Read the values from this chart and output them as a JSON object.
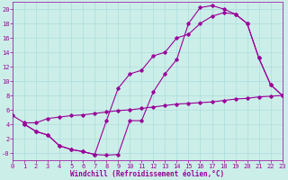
{
  "xlabel": "Windchill (Refroidissement éolien,°C)",
  "bg_color": "#cceee8",
  "line_color": "#990099",
  "grid_color": "#aadddd",
  "line1_x": [
    1,
    2,
    3,
    4,
    5,
    6,
    7,
    8,
    9,
    10,
    11,
    12,
    13,
    14,
    15,
    16,
    17,
    18,
    19,
    20,
    21,
    22,
    23
  ],
  "line1_y": [
    4,
    3,
    2.5,
    1,
    0.5,
    0.2,
    -0.2,
    -0.3,
    -0.2,
    4.5,
    4.5,
    8.5,
    11,
    13,
    18,
    20.2,
    20.5,
    20,
    19.3,
    18,
    13.2,
    9.5,
    8
  ],
  "line2_x": [
    0,
    1,
    2,
    3,
    4,
    5,
    6,
    7,
    8,
    9,
    10,
    11,
    12,
    13,
    14,
    15,
    16,
    17,
    18,
    19,
    20,
    21,
    22,
    23
  ],
  "line2_y": [
    5.2,
    4.2,
    4.2,
    4.8,
    5.0,
    5.2,
    5.3,
    5.5,
    5.7,
    5.9,
    6.0,
    6.2,
    6.4,
    6.6,
    6.8,
    6.9,
    7.0,
    7.1,
    7.3,
    7.5,
    7.6,
    7.8,
    7.9,
    8.0
  ],
  "line3_x": [
    1,
    2,
    3,
    4,
    5,
    6,
    7,
    8,
    9,
    10,
    11,
    12,
    13,
    14,
    15,
    16,
    17,
    18,
    19,
    20,
    21,
    22,
    23
  ],
  "line3_y": [
    4,
    3,
    2.5,
    1,
    0.5,
    0.2,
    -0.2,
    4.5,
    9,
    11,
    11.5,
    13.5,
    14,
    16,
    16.5,
    18,
    19,
    19.5,
    19.3,
    18,
    13.2,
    9.5,
    8
  ],
  "ylim": [
    -1,
    21
  ],
  "xlim": [
    0,
    23
  ],
  "yticks": [
    0,
    2,
    4,
    6,
    8,
    10,
    12,
    14,
    16,
    18,
    20
  ],
  "ytick_labels": [
    "-0",
    "2",
    "4",
    "6",
    "8",
    "10",
    "12",
    "14",
    "16",
    "18",
    "20"
  ],
  "xticks": [
    0,
    1,
    2,
    3,
    4,
    5,
    6,
    7,
    8,
    9,
    10,
    11,
    12,
    13,
    14,
    15,
    16,
    17,
    18,
    19,
    20,
    21,
    22,
    23
  ],
  "marker": "D",
  "markersize": 1.8,
  "linewidth": 0.8,
  "tick_fontsize": 5.0,
  "xlabel_fontsize": 5.5
}
